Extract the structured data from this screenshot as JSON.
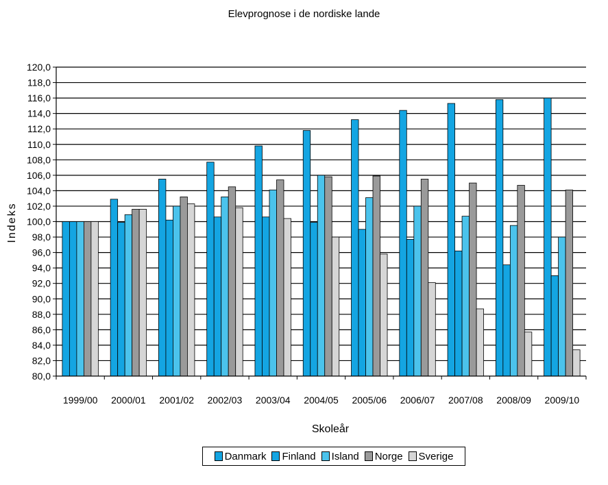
{
  "chart_data": {
    "type": "bar",
    "title": "Elevprognose i de nordiske lande",
    "xlabel": "Skoleår",
    "ylabel": "Indeks",
    "ylim": [
      80,
      120
    ],
    "ytick_step": 2,
    "ytick_labels": [
      "80,0",
      "82,0",
      "84,0",
      "86,0",
      "88,0",
      "90,0",
      "92,0",
      "94,0",
      "96,0",
      "98,0",
      "100,0",
      "102,0",
      "104,0",
      "106,0",
      "108,0",
      "110,0",
      "112,0",
      "114,0",
      "116,0",
      "118,0",
      "120,0"
    ],
    "grid": true,
    "legend_position": "bottom",
    "categories": [
      "1999/00",
      "2000/01",
      "2001/02",
      "2002/03",
      "2003/04",
      "2004/05",
      "2005/06",
      "2006/07",
      "2007/08",
      "2008/09",
      "2009/10"
    ],
    "series": [
      {
        "name": "Danmark",
        "color": "#14a5e2",
        "values": [
          100.0,
          102.9,
          105.5,
          107.7,
          109.8,
          111.8,
          113.2,
          114.4,
          115.3,
          115.8,
          116.0
        ]
      },
      {
        "name": "Finland",
        "color": "#14a5e2",
        "values": [
          100.0,
          99.9,
          100.2,
          100.6,
          100.6,
          99.9,
          99.0,
          97.7,
          96.2,
          94.4,
          93.0
        ]
      },
      {
        "name": "Island",
        "color": "#4bc3ec",
        "values": [
          100.0,
          100.9,
          102.0,
          103.2,
          104.1,
          106.0,
          103.1,
          102.0,
          100.7,
          99.5,
          98.0
        ]
      },
      {
        "name": "Norge",
        "color": "#9a9a9a",
        "values": [
          100.0,
          101.6,
          103.2,
          104.5,
          105.4,
          105.8,
          105.9,
          105.5,
          105.0,
          104.7,
          104.1
        ]
      },
      {
        "name": "Sverige",
        "color": "#d6d6d6",
        "values": [
          100.0,
          101.6,
          102.3,
          101.8,
          100.4,
          98.0,
          95.8,
          92.1,
          88.7,
          85.7,
          83.4
        ]
      }
    ]
  }
}
